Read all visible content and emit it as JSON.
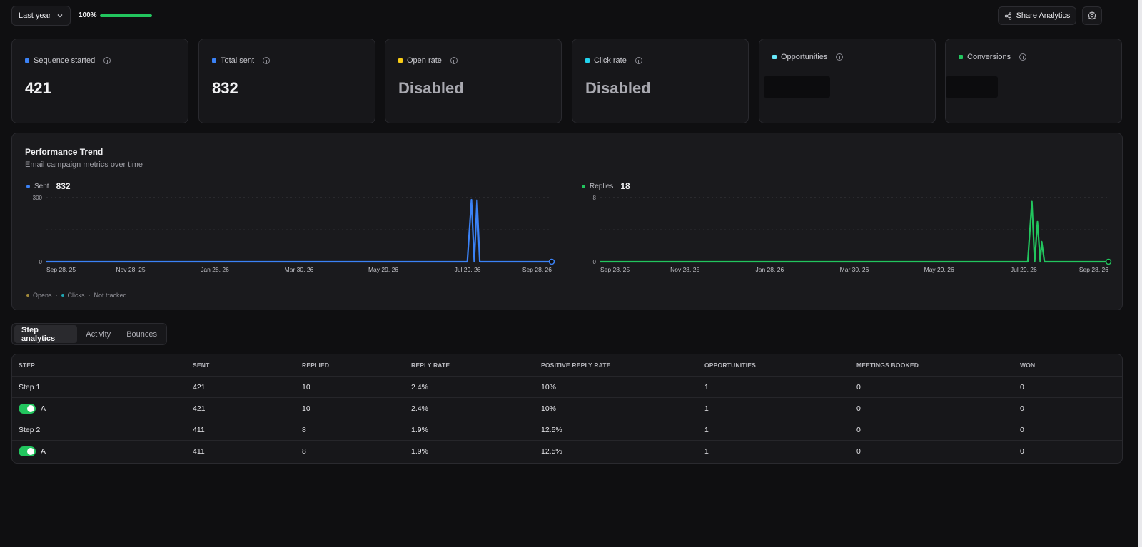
{
  "topbar": {
    "range_label": "Last year",
    "progress_label": "100%",
    "progress_value": 1.0,
    "share_label": "Share Analytics"
  },
  "cards": [
    {
      "label": "Sequence started",
      "value": "421",
      "color": "#3b82f6",
      "state": "value"
    },
    {
      "label": "Total sent",
      "value": "832",
      "color": "#3b82f6",
      "state": "value"
    },
    {
      "label": "Open rate",
      "value": "Disabled",
      "color": "#facc15",
      "state": "disabled"
    },
    {
      "label": "Click rate",
      "value": "Disabled",
      "color": "#22d3ee",
      "state": "disabled"
    },
    {
      "label": "Opportunities",
      "value": "",
      "color": "#67e8f9",
      "state": "loading"
    },
    {
      "label": "Conversions",
      "value": "",
      "color": "#22c55e",
      "state": "loading"
    }
  ],
  "trend": {
    "title": "Performance Trend",
    "subtitle": "Email campaign metrics over time",
    "bottom_legend": {
      "opens": "Opens",
      "clicks": "Clicks",
      "note": "Not tracked",
      "sep": "·"
    }
  },
  "chart_data": [
    {
      "type": "line",
      "series": [
        {
          "name": "Sent",
          "color": "#3b82f6",
          "total": "832"
        }
      ],
      "ylim": [
        0,
        300
      ],
      "y_ticks": [
        "300",
        "0"
      ],
      "x_ticks": [
        "Sep 28, 25",
        "Nov 28, 25",
        "Jan 28, 26",
        "Mar 30, 26",
        "May 29, 26",
        "Jul 29, 26",
        "Sep 28, 26"
      ],
      "x_domain": [
        "2025-09-28",
        "2026-09-28"
      ],
      "points": [
        {
          "x": "2025-09-28",
          "y": 0
        },
        {
          "x": "2026-07-29",
          "y": 0
        },
        {
          "x": "2026-08-01",
          "y": 290
        },
        {
          "x": "2026-08-03",
          "y": 0
        },
        {
          "x": "2026-08-05",
          "y": 288
        },
        {
          "x": "2026-08-07",
          "y": 0
        },
        {
          "x": "2026-09-28",
          "y": 0
        }
      ]
    },
    {
      "type": "line",
      "series": [
        {
          "name": "Replies",
          "color": "#22c55e",
          "total": "18"
        }
      ],
      "ylim": [
        0,
        8
      ],
      "y_ticks": [
        "8",
        "0"
      ],
      "x_ticks": [
        "Sep 28, 25",
        "Nov 28, 25",
        "Jan 28, 26",
        "Mar 30, 26",
        "May 29, 26",
        "Jul 29, 26",
        "Sep 28, 26"
      ],
      "x_domain": [
        "2025-09-28",
        "2026-09-28"
      ],
      "points": [
        {
          "x": "2025-09-28",
          "y": 0
        },
        {
          "x": "2026-08-01",
          "y": 0
        },
        {
          "x": "2026-08-04",
          "y": 7.5
        },
        {
          "x": "2026-08-06",
          "y": 0
        },
        {
          "x": "2026-08-08",
          "y": 5
        },
        {
          "x": "2026-08-10",
          "y": 0
        },
        {
          "x": "2026-08-11",
          "y": 2.5
        },
        {
          "x": "2026-08-13",
          "y": 0
        },
        {
          "x": "2026-09-28",
          "y": 0
        }
      ]
    }
  ],
  "tabs": [
    {
      "label": "Step analytics",
      "active": true
    },
    {
      "label": "Activity",
      "active": false
    },
    {
      "label": "Bounces",
      "active": false
    }
  ],
  "table": {
    "columns": [
      "STEP",
      "SENT",
      "REPLIED",
      "REPLY RATE",
      "POSITIVE REPLY RATE",
      "OPPORTUNITIES",
      "MEETINGS BOOKED",
      "WON"
    ],
    "rows": [
      {
        "step": "Step 1",
        "toggle": false,
        "cells": [
          "421",
          "10",
          "2.4%",
          "10%",
          "1",
          "0",
          "0"
        ]
      },
      {
        "step": "A",
        "toggle": true,
        "cells": [
          "421",
          "10",
          "2.4%",
          "10%",
          "1",
          "0",
          "0"
        ]
      },
      {
        "step": "Step 2",
        "toggle": false,
        "cells": [
          "411",
          "8",
          "1.9%",
          "12.5%",
          "1",
          "0",
          "0"
        ]
      },
      {
        "step": "A",
        "toggle": true,
        "cells": [
          "411",
          "8",
          "1.9%",
          "12.5%",
          "1",
          "0",
          "0"
        ]
      }
    ]
  }
}
